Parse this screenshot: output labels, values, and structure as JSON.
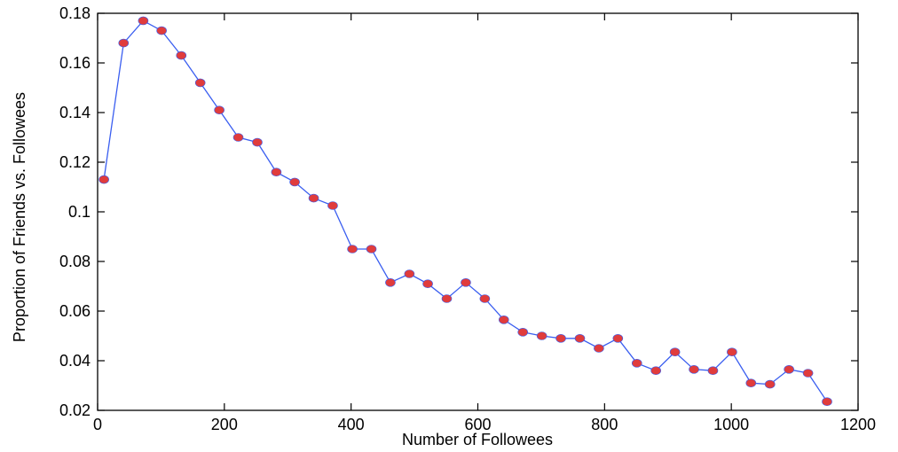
{
  "chart_data": {
    "type": "line",
    "title": "",
    "xlabel": "Number of Followees",
    "ylabel": "Proportion of Friends vs. Followees",
    "xlim": [
      0,
      1200
    ],
    "ylim": [
      0.02,
      0.18
    ],
    "x_ticks": [
      0,
      200,
      400,
      600,
      800,
      1000,
      1200
    ],
    "x_tick_labels": [
      "0",
      "200",
      "400",
      "600",
      "800",
      "1000",
      "1200"
    ],
    "y_ticks": [
      0.02,
      0.04,
      0.06,
      0.08,
      0.1,
      0.12,
      0.14,
      0.16,
      0.18
    ],
    "y_tick_labels": [
      "0.02",
      "0.04",
      "0.06",
      "0.08",
      "0.1",
      "0.12",
      "0.14",
      "0.16",
      "0.18"
    ],
    "grid": false,
    "line_color": "#3a5ef0",
    "marker_color": "#e03c3c",
    "series": [
      {
        "x": [
          10,
          41,
          72,
          101,
          132,
          162,
          192,
          222,
          252,
          282,
          311,
          341,
          371,
          402,
          432,
          462,
          492,
          521,
          551,
          581,
          611,
          641,
          671,
          701,
          731,
          761,
          791,
          821,
          851,
          881,
          911,
          941,
          971,
          1001,
          1031,
          1061,
          1091,
          1121,
          1151
        ],
        "y": [
          0.113,
          0.168,
          0.177,
          0.173,
          0.163,
          0.152,
          0.141,
          0.13,
          0.128,
          0.116,
          0.112,
          0.1055,
          0.1025,
          0.085,
          0.085,
          0.0715,
          0.075,
          0.071,
          0.065,
          0.0715,
          0.065,
          0.0565,
          0.0515,
          0.05,
          0.049,
          0.049,
          0.045,
          0.049,
          0.039,
          0.036,
          0.0435,
          0.0365,
          0.036,
          0.0435,
          0.031,
          0.0305,
          0.0365,
          0.035,
          0.0235
        ]
      }
    ]
  }
}
